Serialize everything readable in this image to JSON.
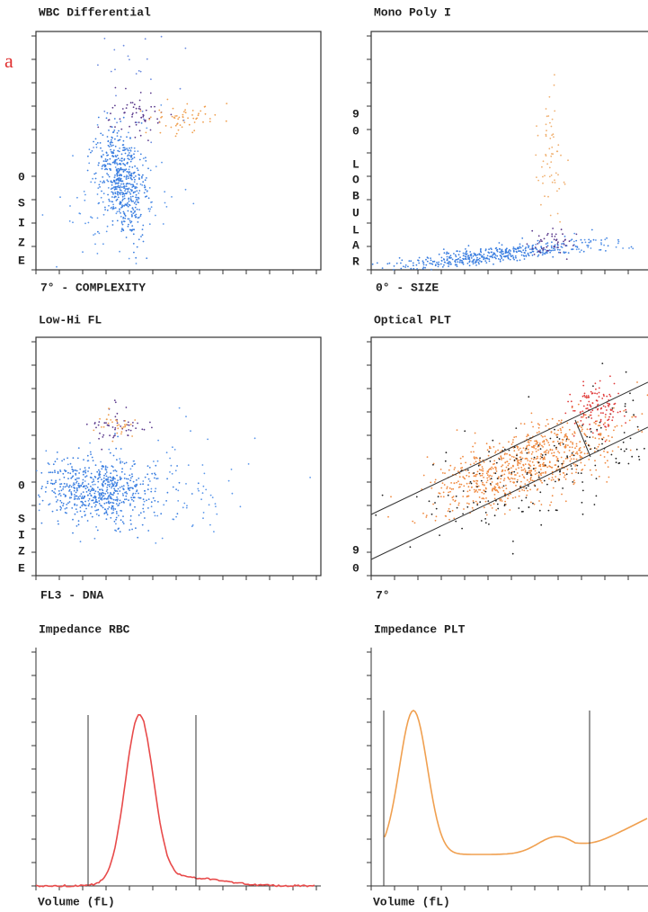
{
  "figure_label": "a",
  "panels": [
    {
      "title": "WBC Differential",
      "x_label": "7° - COMPLEXITY",
      "y_label": [
        "0",
        "S",
        "I",
        "Z",
        "E"
      ]
    },
    {
      "title": "Mono Poly I",
      "x_label": "0° - SIZE",
      "y_label": [
        "9",
        "0",
        "L",
        "O",
        "B",
        "U",
        "L",
        "A",
        "R"
      ]
    },
    {
      "title": "Low-Hi FL",
      "x_label": "FL3 - DNA",
      "y_label": [
        "0",
        "S",
        "I",
        "Z",
        "E"
      ]
    },
    {
      "title": "Optical PLT",
      "x_label": "7°",
      "y_label": [
        "9",
        "0"
      ]
    },
    {
      "title": "Impedance RBC",
      "x_label": "Volume (fL)"
    },
    {
      "title": "Impedance PLT",
      "x_label": "Volume (fL)"
    }
  ]
}
